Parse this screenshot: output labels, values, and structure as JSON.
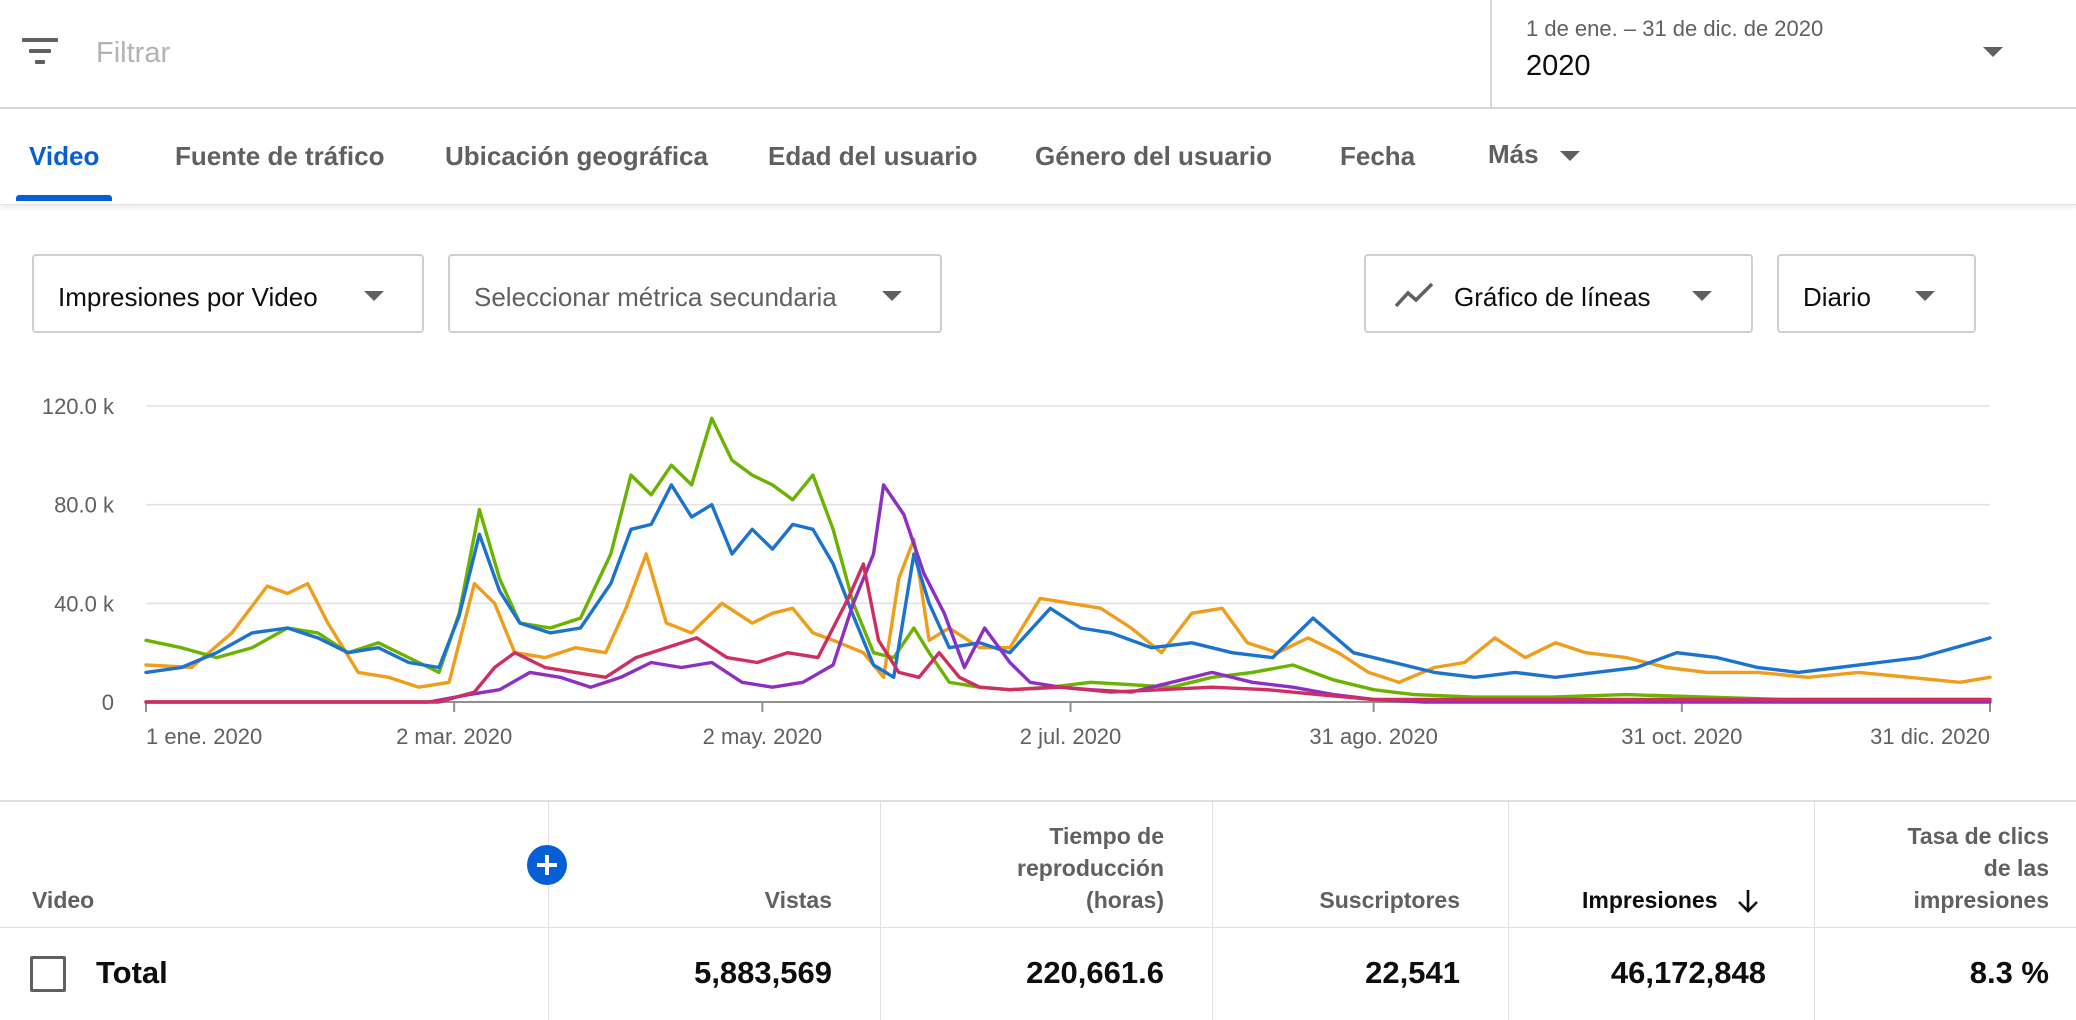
{
  "filter": {
    "placeholder": "Filtrar",
    "icon": "filter-list-icon"
  },
  "date_picker": {
    "range": "1 de ene. – 31 de dic. de 2020",
    "value": "2020"
  },
  "tabs": [
    {
      "label": "Video",
      "active": true
    },
    {
      "label": "Fuente de tráfico"
    },
    {
      "label": "Ubicación geográfica"
    },
    {
      "label": "Edad del usuario"
    },
    {
      "label": "Género del usuario"
    },
    {
      "label": "Fecha"
    },
    {
      "label": "Más"
    }
  ],
  "controls": {
    "primary_metric": "Impresiones por Video",
    "secondary_metric": "Seleccionar métrica secundaria",
    "chart_type": "Gráfico de líneas",
    "chart_type_icon": "line-chart-icon",
    "granularity": "Diario"
  },
  "chart_data": {
    "type": "line",
    "y_ticks": [
      "0",
      "40.0 k",
      "80.0 k",
      "120.0 k"
    ],
    "ylim": [
      0,
      120000
    ],
    "grid": true,
    "x_ticks": [
      {
        "date": "2020-01-01",
        "label": "1 ene. 2020"
      },
      {
        "date": "2020-03-02",
        "label": "2 mar. 2020"
      },
      {
        "date": "2020-05-02",
        "label": "2 may. 2020"
      },
      {
        "date": "2020-07-02",
        "label": "2 jul. 2020"
      },
      {
        "date": "2020-08-31",
        "label": "31 ago. 2020"
      },
      {
        "date": "2020-10-31",
        "label": "31 oct. 2020"
      },
      {
        "date": "2020-12-31",
        "label": "31 dic. 2020"
      }
    ],
    "xlim": [
      "2020-01-01",
      "2020-12-31"
    ],
    "series": [
      {
        "color": "#f09d1c",
        "points": [
          [
            "2020-01-01",
            15000
          ],
          [
            "2020-01-10",
            14000
          ],
          [
            "2020-01-18",
            28000
          ],
          [
            "2020-01-25",
            47000
          ],
          [
            "2020-01-29",
            44000
          ],
          [
            "2020-02-02",
            48000
          ],
          [
            "2020-02-06",
            32000
          ],
          [
            "2020-02-12",
            12000
          ],
          [
            "2020-02-18",
            10000
          ],
          [
            "2020-02-24",
            6000
          ],
          [
            "2020-03-01",
            8000
          ],
          [
            "2020-03-06",
            48000
          ],
          [
            "2020-03-10",
            40000
          ],
          [
            "2020-03-14",
            20000
          ],
          [
            "2020-03-20",
            18000
          ],
          [
            "2020-03-26",
            22000
          ],
          [
            "2020-04-01",
            20000
          ],
          [
            "2020-04-05",
            38000
          ],
          [
            "2020-04-09",
            60000
          ],
          [
            "2020-04-13",
            32000
          ],
          [
            "2020-04-18",
            28000
          ],
          [
            "2020-04-24",
            40000
          ],
          [
            "2020-04-30",
            32000
          ],
          [
            "2020-05-04",
            36000
          ],
          [
            "2020-05-08",
            38000
          ],
          [
            "2020-05-12",
            28000
          ],
          [
            "2020-05-16",
            25000
          ],
          [
            "2020-05-22",
            20000
          ],
          [
            "2020-05-26",
            10000
          ],
          [
            "2020-05-29",
            50000
          ],
          [
            "2020-06-01",
            66000
          ],
          [
            "2020-06-04",
            25000
          ],
          [
            "2020-06-08",
            30000
          ],
          [
            "2020-06-14",
            22000
          ],
          [
            "2020-06-20",
            22000
          ],
          [
            "2020-06-26",
            42000
          ],
          [
            "2020-07-02",
            40000
          ],
          [
            "2020-07-08",
            38000
          ],
          [
            "2020-07-14",
            30000
          ],
          [
            "2020-07-20",
            20000
          ],
          [
            "2020-07-26",
            36000
          ],
          [
            "2020-08-01",
            38000
          ],
          [
            "2020-08-06",
            24000
          ],
          [
            "2020-08-12",
            20000
          ],
          [
            "2020-08-18",
            26000
          ],
          [
            "2020-08-24",
            20000
          ],
          [
            "2020-08-30",
            12000
          ],
          [
            "2020-09-05",
            8000
          ],
          [
            "2020-09-12",
            14000
          ],
          [
            "2020-09-18",
            16000
          ],
          [
            "2020-09-24",
            26000
          ],
          [
            "2020-09-30",
            18000
          ],
          [
            "2020-10-06",
            24000
          ],
          [
            "2020-10-12",
            20000
          ],
          [
            "2020-10-20",
            18000
          ],
          [
            "2020-10-28",
            14000
          ],
          [
            "2020-11-05",
            12000
          ],
          [
            "2020-11-15",
            12000
          ],
          [
            "2020-11-25",
            10000
          ],
          [
            "2020-12-05",
            12000
          ],
          [
            "2020-12-15",
            10000
          ],
          [
            "2020-12-25",
            8000
          ],
          [
            "2020-12-31",
            10000
          ]
        ]
      },
      {
        "color": "#6bb300",
        "points": [
          [
            "2020-01-01",
            25000
          ],
          [
            "2020-01-08",
            22000
          ],
          [
            "2020-01-15",
            18000
          ],
          [
            "2020-01-22",
            22000
          ],
          [
            "2020-01-29",
            30000
          ],
          [
            "2020-02-04",
            28000
          ],
          [
            "2020-02-10",
            20000
          ],
          [
            "2020-02-16",
            24000
          ],
          [
            "2020-02-22",
            18000
          ],
          [
            "2020-02-28",
            12000
          ],
          [
            "2020-03-03",
            36000
          ],
          [
            "2020-03-07",
            78000
          ],
          [
            "2020-03-11",
            50000
          ],
          [
            "2020-03-15",
            32000
          ],
          [
            "2020-03-21",
            30000
          ],
          [
            "2020-03-27",
            34000
          ],
          [
            "2020-04-02",
            60000
          ],
          [
            "2020-04-06",
            92000
          ],
          [
            "2020-04-10",
            84000
          ],
          [
            "2020-04-14",
            96000
          ],
          [
            "2020-04-18",
            88000
          ],
          [
            "2020-04-22",
            115000
          ],
          [
            "2020-04-26",
            98000
          ],
          [
            "2020-04-30",
            92000
          ],
          [
            "2020-05-04",
            88000
          ],
          [
            "2020-05-08",
            82000
          ],
          [
            "2020-05-12",
            92000
          ],
          [
            "2020-05-16",
            70000
          ],
          [
            "2020-05-20",
            40000
          ],
          [
            "2020-05-24",
            20000
          ],
          [
            "2020-05-28",
            18000
          ],
          [
            "2020-06-01",
            30000
          ],
          [
            "2020-06-04",
            20000
          ],
          [
            "2020-06-08",
            8000
          ],
          [
            "2020-06-14",
            6000
          ],
          [
            "2020-06-20",
            5000
          ],
          [
            "2020-06-28",
            6000
          ],
          [
            "2020-07-06",
            8000
          ],
          [
            "2020-07-14",
            7000
          ],
          [
            "2020-07-22",
            6000
          ],
          [
            "2020-07-30",
            10000
          ],
          [
            "2020-08-07",
            12000
          ],
          [
            "2020-08-15",
            15000
          ],
          [
            "2020-08-23",
            9000
          ],
          [
            "2020-08-31",
            5000
          ],
          [
            "2020-09-08",
            3000
          ],
          [
            "2020-09-20",
            2000
          ],
          [
            "2020-10-05",
            2000
          ],
          [
            "2020-10-20",
            3000
          ],
          [
            "2020-11-05",
            2000
          ],
          [
            "2020-11-20",
            1000
          ],
          [
            "2020-12-10",
            1000
          ],
          [
            "2020-12-31",
            1000
          ]
        ]
      },
      {
        "color": "#1b73cf",
        "points": [
          [
            "2020-01-01",
            12000
          ],
          [
            "2020-01-08",
            14000
          ],
          [
            "2020-01-15",
            20000
          ],
          [
            "2020-01-22",
            28000
          ],
          [
            "2020-01-29",
            30000
          ],
          [
            "2020-02-04",
            26000
          ],
          [
            "2020-02-10",
            20000
          ],
          [
            "2020-02-16",
            22000
          ],
          [
            "2020-02-22",
            16000
          ],
          [
            "2020-02-28",
            14000
          ],
          [
            "2020-03-03",
            35000
          ],
          [
            "2020-03-07",
            68000
          ],
          [
            "2020-03-11",
            45000
          ],
          [
            "2020-03-15",
            32000
          ],
          [
            "2020-03-21",
            28000
          ],
          [
            "2020-03-27",
            30000
          ],
          [
            "2020-04-02",
            48000
          ],
          [
            "2020-04-06",
            70000
          ],
          [
            "2020-04-10",
            72000
          ],
          [
            "2020-04-14",
            88000
          ],
          [
            "2020-04-18",
            75000
          ],
          [
            "2020-04-22",
            80000
          ],
          [
            "2020-04-26",
            60000
          ],
          [
            "2020-04-30",
            70000
          ],
          [
            "2020-05-04",
            62000
          ],
          [
            "2020-05-08",
            72000
          ],
          [
            "2020-05-12",
            70000
          ],
          [
            "2020-05-16",
            56000
          ],
          [
            "2020-05-20",
            35000
          ],
          [
            "2020-05-24",
            15000
          ],
          [
            "2020-05-28",
            10000
          ],
          [
            "2020-06-01",
            60000
          ],
          [
            "2020-06-04",
            40000
          ],
          [
            "2020-06-08",
            22000
          ],
          [
            "2020-06-14",
            24000
          ],
          [
            "2020-06-20",
            20000
          ],
          [
            "2020-06-28",
            38000
          ],
          [
            "2020-07-04",
            30000
          ],
          [
            "2020-07-10",
            28000
          ],
          [
            "2020-07-18",
            22000
          ],
          [
            "2020-07-26",
            24000
          ],
          [
            "2020-08-03",
            20000
          ],
          [
            "2020-08-11",
            18000
          ],
          [
            "2020-08-19",
            34000
          ],
          [
            "2020-08-27",
            20000
          ],
          [
            "2020-09-04",
            16000
          ],
          [
            "2020-09-12",
            12000
          ],
          [
            "2020-09-20",
            10000
          ],
          [
            "2020-09-28",
            12000
          ],
          [
            "2020-10-06",
            10000
          ],
          [
            "2020-10-14",
            12000
          ],
          [
            "2020-10-22",
            14000
          ],
          [
            "2020-10-30",
            20000
          ],
          [
            "2020-11-07",
            18000
          ],
          [
            "2020-11-15",
            14000
          ],
          [
            "2020-11-23",
            12000
          ],
          [
            "2020-12-01",
            14000
          ],
          [
            "2020-12-09",
            16000
          ],
          [
            "2020-12-17",
            18000
          ],
          [
            "2020-12-24",
            22000
          ],
          [
            "2020-12-31",
            26000
          ]
        ]
      },
      {
        "color": "#8e2fc4",
        "points": [
          [
            "2020-01-01",
            0
          ],
          [
            "2020-02-01",
            0
          ],
          [
            "2020-02-26",
            0
          ],
          [
            "2020-03-05",
            3000
          ],
          [
            "2020-03-11",
            5000
          ],
          [
            "2020-03-17",
            12000
          ],
          [
            "2020-03-23",
            10000
          ],
          [
            "2020-03-29",
            6000
          ],
          [
            "2020-04-04",
            10000
          ],
          [
            "2020-04-10",
            16000
          ],
          [
            "2020-04-16",
            14000
          ],
          [
            "2020-04-22",
            16000
          ],
          [
            "2020-04-28",
            8000
          ],
          [
            "2020-05-04",
            6000
          ],
          [
            "2020-05-10",
            8000
          ],
          [
            "2020-05-16",
            15000
          ],
          [
            "2020-05-20",
            40000
          ],
          [
            "2020-05-24",
            60000
          ],
          [
            "2020-05-26",
            88000
          ],
          [
            "2020-05-30",
            76000
          ],
          [
            "2020-06-03",
            52000
          ],
          [
            "2020-06-07",
            36000
          ],
          [
            "2020-06-11",
            14000
          ],
          [
            "2020-06-15",
            30000
          ],
          [
            "2020-06-20",
            16000
          ],
          [
            "2020-06-24",
            8000
          ],
          [
            "2020-06-30",
            6000
          ],
          [
            "2020-07-06",
            5000
          ],
          [
            "2020-07-14",
            4000
          ],
          [
            "2020-07-22",
            8000
          ],
          [
            "2020-07-30",
            12000
          ],
          [
            "2020-08-07",
            8000
          ],
          [
            "2020-08-15",
            6000
          ],
          [
            "2020-08-23",
            3000
          ],
          [
            "2020-08-31",
            1000
          ],
          [
            "2020-09-10",
            0
          ],
          [
            "2020-10-10",
            0
          ],
          [
            "2020-11-10",
            0
          ],
          [
            "2020-12-10",
            0
          ],
          [
            "2020-12-31",
            0
          ]
        ]
      },
      {
        "color": "#cf2e5f",
        "points": [
          [
            "2020-01-01",
            0
          ],
          [
            "2020-02-01",
            0
          ],
          [
            "2020-02-28",
            0
          ],
          [
            "2020-03-06",
            4000
          ],
          [
            "2020-03-10",
            14000
          ],
          [
            "2020-03-14",
            20000
          ],
          [
            "2020-03-20",
            14000
          ],
          [
            "2020-03-26",
            12000
          ],
          [
            "2020-04-01",
            10000
          ],
          [
            "2020-04-07",
            18000
          ],
          [
            "2020-04-13",
            22000
          ],
          [
            "2020-04-19",
            26000
          ],
          [
            "2020-04-25",
            18000
          ],
          [
            "2020-05-01",
            16000
          ],
          [
            "2020-05-07",
            20000
          ],
          [
            "2020-05-13",
            18000
          ],
          [
            "2020-05-19",
            42000
          ],
          [
            "2020-05-22",
            56000
          ],
          [
            "2020-05-25",
            25000
          ],
          [
            "2020-05-29",
            12000
          ],
          [
            "2020-06-02",
            10000
          ],
          [
            "2020-06-06",
            20000
          ],
          [
            "2020-06-10",
            10000
          ],
          [
            "2020-06-14",
            6000
          ],
          [
            "2020-06-20",
            5000
          ],
          [
            "2020-06-30",
            6000
          ],
          [
            "2020-07-10",
            4000
          ],
          [
            "2020-07-20",
            5000
          ],
          [
            "2020-07-30",
            6000
          ],
          [
            "2020-08-10",
            5000
          ],
          [
            "2020-08-20",
            3000
          ],
          [
            "2020-08-31",
            1000
          ],
          [
            "2020-09-30",
            1000
          ],
          [
            "2020-10-31",
            1000
          ],
          [
            "2020-11-30",
            1000
          ],
          [
            "2020-12-31",
            1000
          ]
        ]
      }
    ]
  },
  "table": {
    "headers": {
      "video": "Video",
      "views": "Vistas",
      "watch_time": [
        "Tiempo de",
        "reproducción",
        "(horas)"
      ],
      "subscribers": "Suscriptores",
      "impressions": "Impresiones",
      "ctr": [
        "Tasa de clics",
        "de las",
        "impresiones"
      ]
    },
    "total": {
      "label": "Total",
      "views": "5,883,569",
      "watch_time": "220,661.6",
      "subscribers": "22,541",
      "impressions": "46,172,848",
      "ctr": "8.3 %"
    }
  }
}
